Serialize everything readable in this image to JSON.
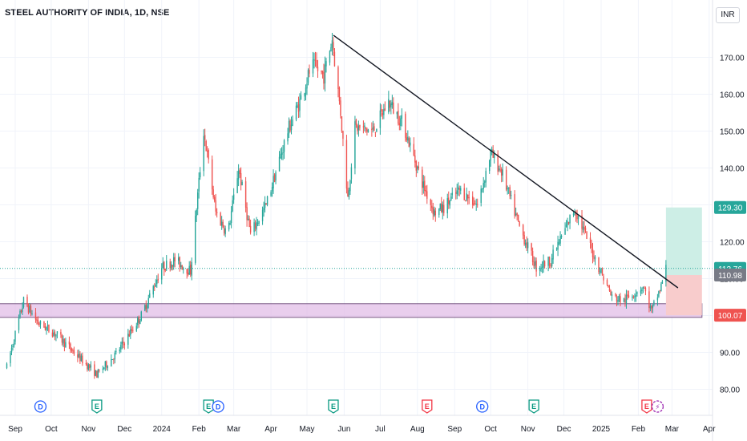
{
  "chart_title": "STEEL AUTHORITY OF INDIA, 1D, NSE",
  "currency_label": "INR",
  "colors": {
    "up": "#26a69a",
    "down": "#ef5350",
    "zone_fill": "#e1bee7",
    "zone_border": "#7b5a86",
    "target_fill": "#cdeee6",
    "stop_fill": "#f8cccc",
    "trendline": "#131722",
    "current_line": "#26a69a"
  },
  "chart_data": {
    "type": "candlestick",
    "title": "STEEL AUTHORITY OF INDIA, 1D, NSE",
    "y_ticks": [
      "80.00",
      "90.00",
      "100.00",
      "110.00",
      "120.00",
      "130.00",
      "140.00",
      "150.00",
      "160.00",
      "170.00"
    ],
    "y_tick_values": [
      80,
      90,
      100,
      110,
      120,
      130,
      140,
      150,
      160,
      170
    ],
    "x_ticks": [
      "Sep",
      "Oct",
      "Nov",
      "Dec",
      "2024",
      "Feb",
      "Mar",
      "Apr",
      "May",
      "Jun",
      "Jul",
      "Aug",
      "Sep",
      "Oct",
      "Nov",
      "Dec",
      "2025",
      "Feb",
      "Mar",
      "Apr"
    ],
    "x_tick_dates": [
      "2023-09-01",
      "2023-10-01",
      "2023-11-01",
      "2023-12-01",
      "2024-01-01",
      "2024-02-01",
      "2024-03-01",
      "2024-04-01",
      "2024-05-01",
      "2024-06-01",
      "2024-07-01",
      "2024-08-01",
      "2024-09-01",
      "2024-10-01",
      "2024-11-01",
      "2024-12-01",
      "2025-01-01",
      "2025-02-01",
      "2025-03-01",
      "2025-04-01"
    ],
    "price_path": [
      [
        "2023-08-25",
        86
      ],
      [
        "2023-09-08",
        104
      ],
      [
        "2023-09-20",
        98
      ],
      [
        "2023-10-05",
        95
      ],
      [
        "2023-10-20",
        90
      ],
      [
        "2023-11-08",
        84
      ],
      [
        "2023-11-25",
        90
      ],
      [
        "2023-12-15",
        100
      ],
      [
        "2024-01-01",
        113
      ],
      [
        "2024-01-12",
        115
      ],
      [
        "2024-01-25",
        112
      ],
      [
        "2024-02-05",
        150
      ],
      [
        "2024-02-15",
        128
      ],
      [
        "2024-02-25",
        122
      ],
      [
        "2024-03-05",
        140
      ],
      [
        "2024-03-15",
        122
      ],
      [
        "2024-03-28",
        130
      ],
      [
        "2024-04-15",
        150
      ],
      [
        "2024-04-25",
        158
      ],
      [
        "2024-05-05",
        168
      ],
      [
        "2024-05-15",
        165
      ],
      [
        "2024-05-22",
        175
      ],
      [
        "2024-05-29",
        155
      ],
      [
        "2024-06-04",
        132
      ],
      [
        "2024-06-10",
        151
      ],
      [
        "2024-06-25",
        150
      ],
      [
        "2024-07-08",
        158
      ],
      [
        "2024-07-20",
        152
      ],
      [
        "2024-08-05",
        136
      ],
      [
        "2024-08-15",
        128
      ],
      [
        "2024-08-22",
        129
      ],
      [
        "2024-09-05",
        134
      ],
      [
        "2024-09-20",
        130
      ],
      [
        "2024-10-01",
        144
      ],
      [
        "2024-10-10",
        139
      ],
      [
        "2024-10-25",
        124
      ],
      [
        "2024-11-08",
        113
      ],
      [
        "2024-11-20",
        115
      ],
      [
        "2024-12-10",
        129
      ],
      [
        "2024-12-25",
        117
      ],
      [
        "2025-01-10",
        105
      ],
      [
        "2025-01-20",
        104
      ],
      [
        "2025-02-05",
        108
      ],
      [
        "2025-02-12",
        101
      ],
      [
        "2025-02-20",
        108
      ],
      [
        "2025-02-24",
        112.76
      ]
    ],
    "annotations": {
      "trendline": {
        "start": [
          "2024-05-23",
          176
        ],
        "end": [
          "2025-03-06",
          107.5
        ]
      },
      "support_zone": {
        "from": "2023-08-25",
        "to": "2025-03-26",
        "low": 99.5,
        "high": 103.2
      },
      "position": {
        "from": "2025-02-24",
        "to": "2025-03-26",
        "entry": 110.98,
        "target": 129.3,
        "stop": 100.07
      }
    },
    "price_labels": [
      {
        "text": "129.30",
        "value": 129.3,
        "color": "#26a69a"
      },
      {
        "text": "112.76",
        "value": 112.76,
        "color": "#26a69a"
      },
      {
        "text": "110.98",
        "value": 110.98,
        "color": "#787b86"
      },
      {
        "text": "100.07",
        "value": 100.07,
        "color": "#ef5350"
      }
    ],
    "event_markers": [
      {
        "date": "2023-09-22",
        "letter": "D",
        "type": "dividend"
      },
      {
        "date": "2023-11-08",
        "letter": "E",
        "type": "earnings"
      },
      {
        "date": "2024-02-09",
        "letter": "E",
        "type": "earnings"
      },
      {
        "date": "2024-02-17",
        "letter": "D",
        "type": "dividend"
      },
      {
        "date": "2024-05-23",
        "letter": "E",
        "type": "earnings"
      },
      {
        "date": "2024-08-09",
        "letter": "E",
        "type": "earnings"
      },
      {
        "date": "2024-09-24",
        "letter": "D",
        "type": "dividend"
      },
      {
        "date": "2024-11-06",
        "letter": "E",
        "type": "earnings"
      },
      {
        "date": "2025-02-08",
        "letter": "E",
        "type": "earnings"
      },
      {
        "date": "2025-02-17",
        "letter": "⚡",
        "type": "split"
      }
    ]
  }
}
